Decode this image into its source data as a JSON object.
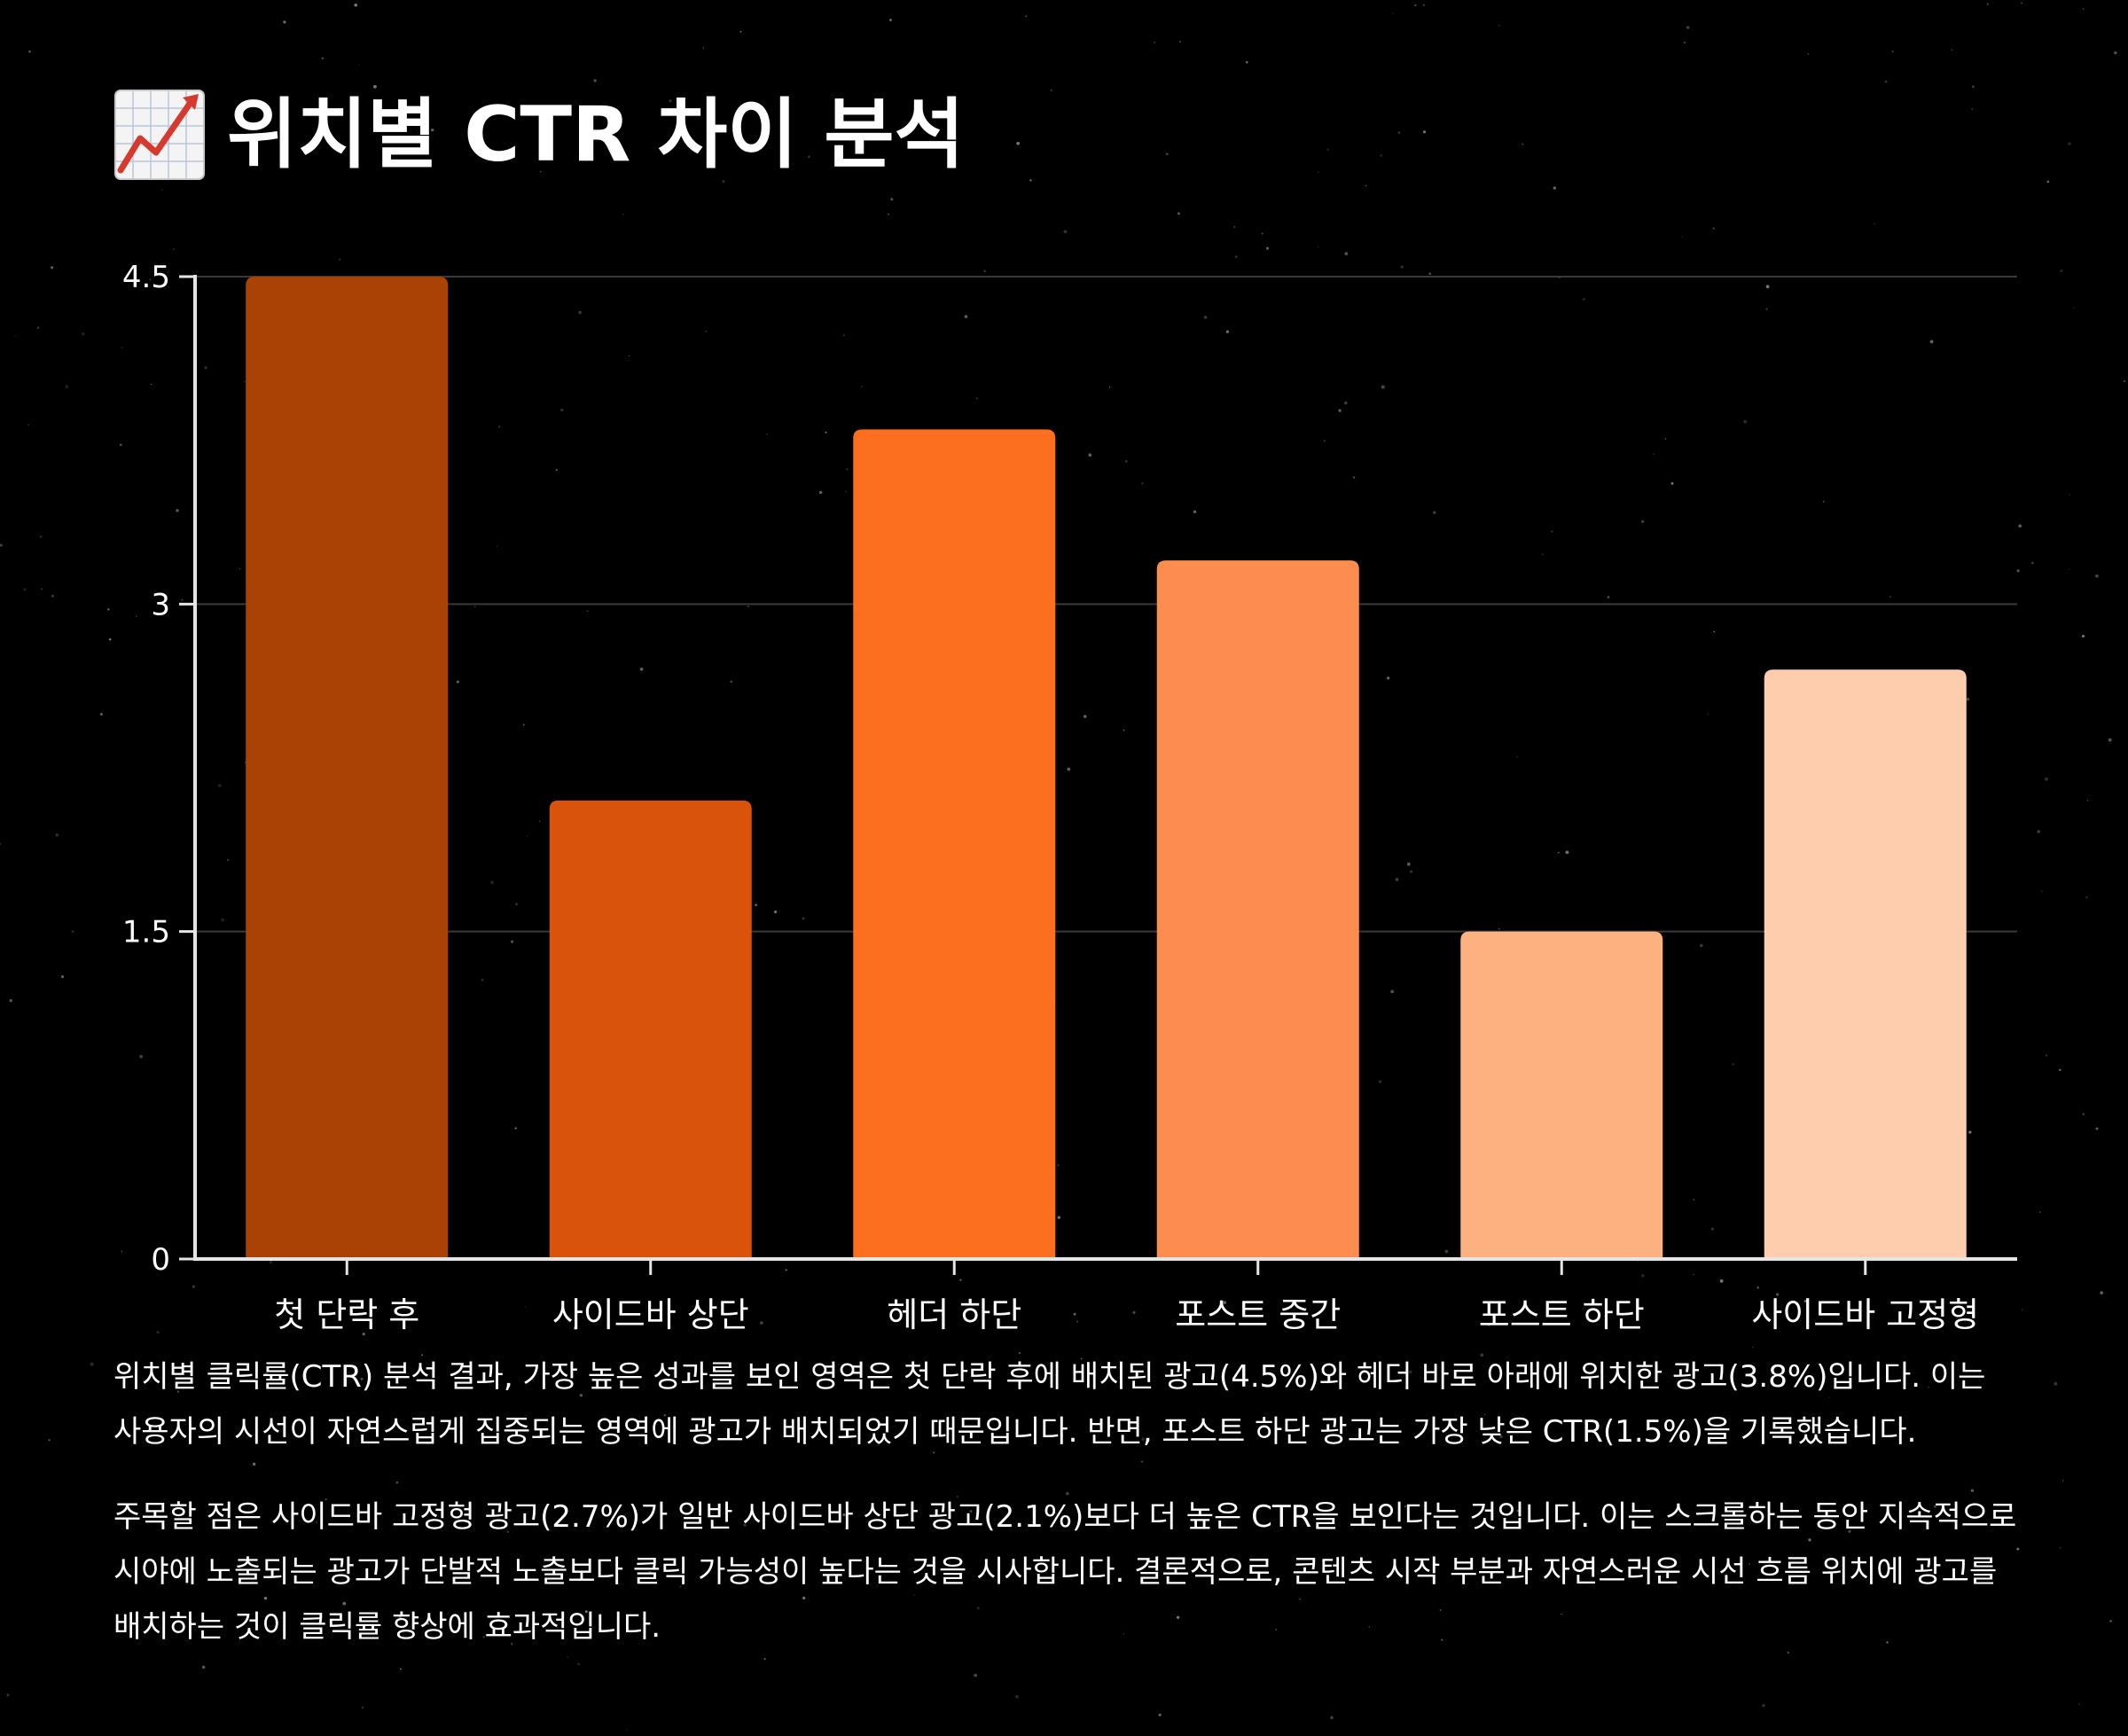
{
  "header": {
    "icon": "chart-increasing-icon",
    "title": "위치별 CTR 차이 분석"
  },
  "chart_data": {
    "type": "bar",
    "categories": [
      "첫 단락 후",
      "사이드바 상단",
      "헤더 하단",
      "포스트 중간",
      "포스트 하단",
      "사이드바 고정형"
    ],
    "values": [
      4.5,
      2.1,
      3.8,
      3.2,
      1.5,
      2.7
    ],
    "colors": [
      "#a94204",
      "#d9530a",
      "#fb6f1f",
      "#fd8d4e",
      "#fdb181",
      "#fecdae"
    ],
    "yticks": [
      0,
      1.5,
      3,
      4.5
    ],
    "ytick_labels": [
      "0",
      "1.5",
      "3",
      "4.5"
    ],
    "ylim": [
      0,
      4.5
    ],
    "title": "",
    "xlabel": "",
    "ylabel": "",
    "grid": true,
    "axis_color": "#e5e5e5",
    "grid_color": "#3a3a3a"
  },
  "body": {
    "paragraph1": "위치별 클릭률(CTR) 분석 결과, 가장 높은 성과를 보인 영역은 첫 단락 후에 배치된 광고(4.5%)와 헤더 바로 아래에 위치한 광고(3.8%)입니다. 이는 사용자의 시선이 자연스럽게 집중되는 영역에 광고가 배치되었기 때문입니다. 반면, 포스트 하단 광고는 가장 낮은 CTR(1.5%)을 기록했습니다.",
    "paragraph2": "주목할 점은 사이드바 고정형 광고(2.7%)가 일반 사이드바 상단 광고(2.1%)보다 더 높은 CTR을 보인다는 것입니다. 이는 스크롤하는 동안 지속적으로 시야에 노출되는 광고가 단발적 노출보다 클릭 가능성이 높다는 것을 시사합니다. 결론적으로, 콘텐츠 시작 부분과 자연스러운 시선 흐름 위치에 광고를 배치하는 것이 클릭률 향상에 효과적입니다."
  }
}
